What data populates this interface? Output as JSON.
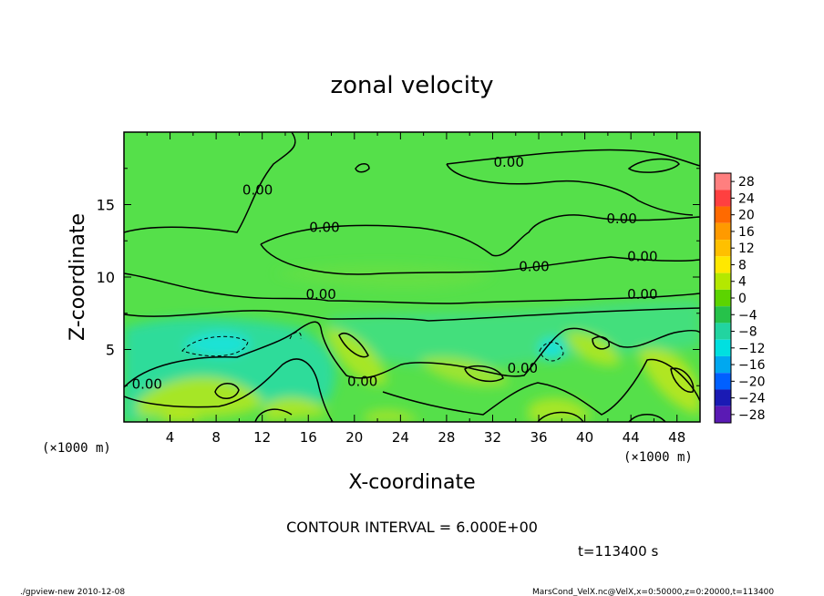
{
  "chart_data": {
    "type": "heatmap",
    "title": "zonal velocity",
    "xlabel": "X-coordinate",
    "ylabel": "Z-coordinate",
    "x_unit": "(×1000 m)",
    "y_unit": "(×1000 m)",
    "xlim": [
      0,
      50
    ],
    "ylim": [
      0,
      20
    ],
    "x_ticks": [
      "4",
      "8",
      "12",
      "16",
      "20",
      "24",
      "28",
      "32",
      "36",
      "40",
      "44",
      "48"
    ],
    "y_ticks": [
      "5",
      "10",
      "15"
    ],
    "contour_interval": "CONTOUR INTERVAL = 6.000E+00",
    "contour_label": "0.00",
    "time_label": "t=113400 s",
    "colorbar": {
      "levels": [
        "28",
        "24",
        "20",
        "16",
        "12",
        "8",
        "4",
        "0",
        "−4",
        "−8",
        "−12",
        "−16",
        "−20",
        "−24",
        "−28"
      ],
      "colors": [
        "#ff7f7f",
        "#ff4040",
        "#ff6a00",
        "#ff9a00",
        "#ffc000",
        "#ffe800",
        "#b4e800",
        "#5cd400",
        "#26c24a",
        "#22d4a0",
        "#00e0e0",
        "#00a8f0",
        "#0060ff",
        "#1a1ab4",
        "#5a1ab4"
      ]
    },
    "field_colors": {
      "background": "#55e04a",
      "positive": "#a6e628",
      "negative": "#2ddc9a",
      "strong_negative": "#1fe2d6"
    },
    "contour_labels_positions": [
      {
        "x": 11.6,
        "z": 15.7
      },
      {
        "x": 17.4,
        "z": 13.1
      },
      {
        "x": 33.4,
        "z": 17.6
      },
      {
        "x": 43.2,
        "z": 13.7
      },
      {
        "x": 45.0,
        "z": 11.1
      },
      {
        "x": 35.6,
        "z": 10.4
      },
      {
        "x": 17.1,
        "z": 8.5
      },
      {
        "x": 45.0,
        "z": 8.5
      },
      {
        "x": 20.7,
        "z": 2.5
      },
      {
        "x": 34.6,
        "z": 3.4
      },
      {
        "x": 2.0,
        "z": 2.3
      }
    ]
  },
  "footer": {
    "left": "./gpview-new   2010-12-08",
    "right": "MarsCond_VelX.nc@VelX,x=0:50000,z=0:20000,t=113400"
  }
}
